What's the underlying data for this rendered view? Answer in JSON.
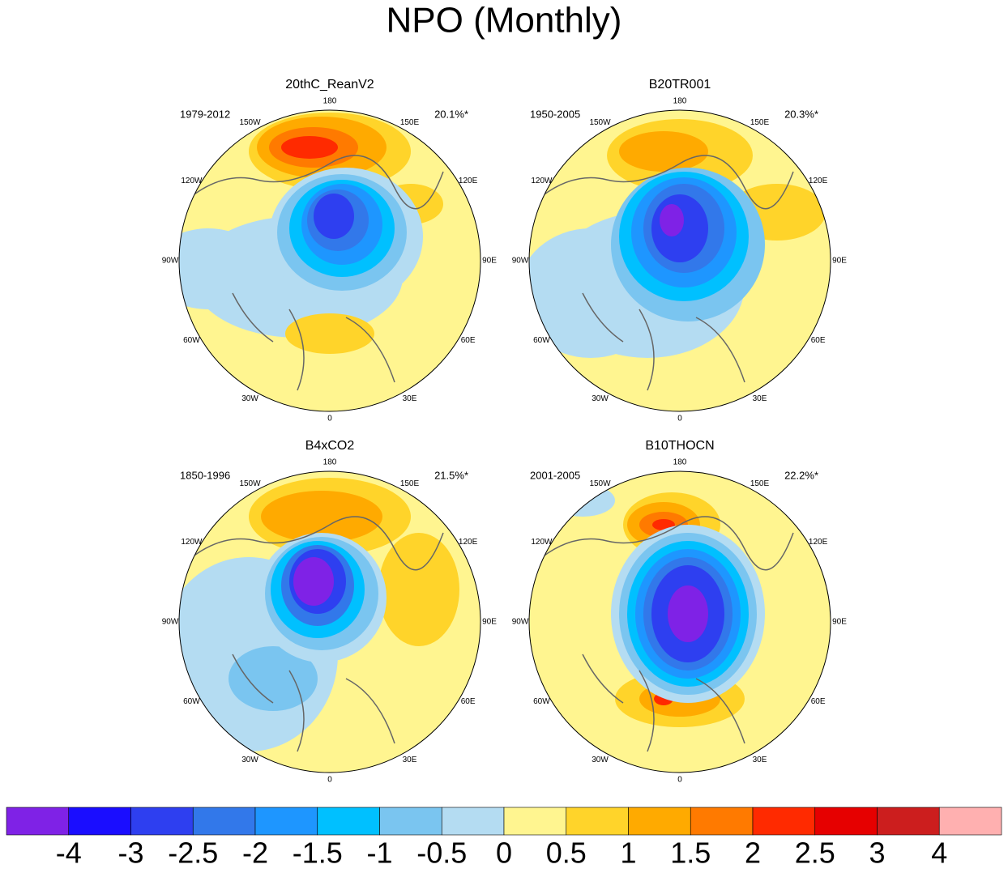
{
  "title": "NPO (Monthly)",
  "panels": [
    {
      "title": "20thC_ReanV2",
      "period": "1979-2012",
      "variance": "20.1%*"
    },
    {
      "title": "B20TR001",
      "period": "1950-2005",
      "variance": "20.3%*"
    },
    {
      "title": "B4xCO2",
      "period": "1850-1996",
      "variance": "21.5%*"
    },
    {
      "title": "B10THOCN",
      "period": "2001-2005",
      "variance": "22.2%*"
    }
  ],
  "lon_labels": [
    "0",
    "30E",
    "60E",
    "90E",
    "120E",
    "150E",
    "180",
    "150W",
    "120W",
    "90W",
    "60W",
    "30W"
  ],
  "colorbar": {
    "levels": [
      -4,
      -3,
      -2.5,
      -2,
      -1.5,
      -1,
      -0.5,
      0,
      0.5,
      1,
      1.5,
      2,
      2.5,
      3,
      4
    ],
    "colors": [
      "#7f22e6",
      "#1a0dff",
      "#2e3ff0",
      "#3278ea",
      "#1e96ff",
      "#00c0ff",
      "#7ac5f0",
      "#b4dcf2",
      "#fff590",
      "#ffd42a",
      "#ffaa00",
      "#ff7a00",
      "#ff2a00",
      "#e60000",
      "#cc1e1e",
      "#ffb0b0"
    ]
  }
}
